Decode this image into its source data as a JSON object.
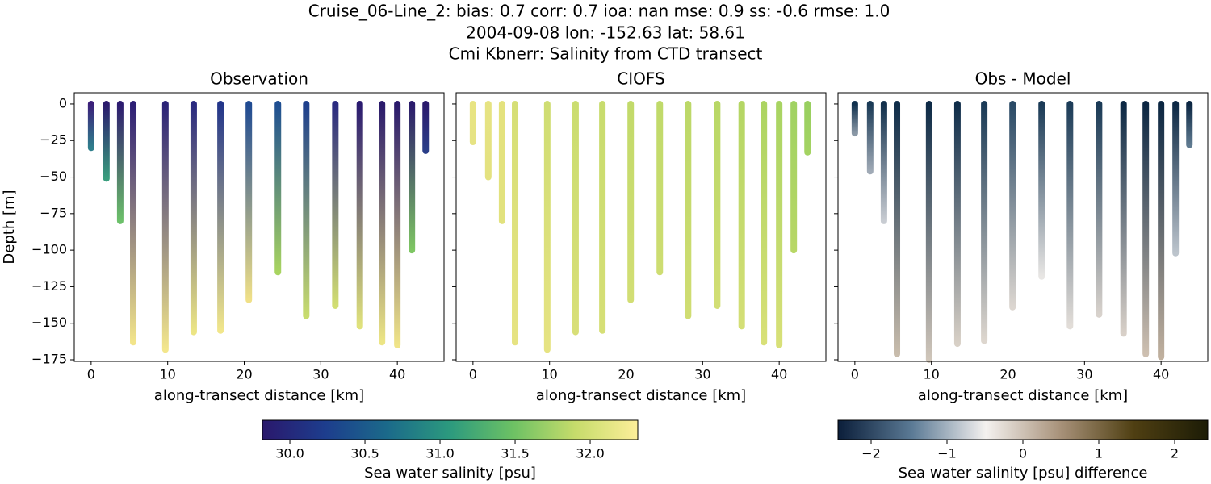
{
  "figure": {
    "title_lines": [
      "Cruise_06-Line_2: bias: 0.7  corr: 0.7  ioa: nan  mse: 0.9  ss: -0.6  rmse: 1.0",
      "2004-09-08 lon: -152.63 lat: 58.61",
      "Cmi Kbnerr: Salinity from CTD transect"
    ]
  },
  "chart_data": [
    {
      "type": "profiles",
      "title": "Observation",
      "xlabel": "along-transect distance [km]",
      "ylabel": "Depth [m]",
      "x": [
        0,
        2,
        3.8,
        5.5,
        9.7,
        13.4,
        16.9,
        20.6,
        24.4,
        28.1,
        31.9,
        35.1,
        38,
        40,
        41.9,
        43.7
      ],
      "depth": [
        -30,
        -51,
        -80,
        -163,
        -168,
        -156,
        -155,
        -134,
        -115,
        -145,
        -138,
        -152,
        -163,
        -165,
        -100,
        -32
      ],
      "colors": [
        [
          "#3b1f7a",
          "#2f7f8c"
        ],
        [
          "#2b1a6d",
          "#3a9e7e"
        ],
        [
          "#2d1b70",
          "#6cc06a"
        ],
        [
          "#2c1e75",
          "#f2e48a"
        ],
        [
          "#2b2377",
          "#f3e68c"
        ],
        [
          "#2a2a80",
          "#ece584"
        ],
        [
          "#22358a",
          "#f1e68b"
        ],
        [
          "#1f4a92",
          "#f0e088"
        ],
        [
          "#1e4e92",
          "#a8d460"
        ],
        [
          "#1e3f8c",
          "#c8dc6e"
        ],
        [
          "#2a2a80",
          "#d2de72"
        ],
        [
          "#2a1a70",
          "#e0e27c"
        ],
        [
          "#2a1a6c",
          "#ece585"
        ],
        [
          "#2a1a6c",
          "#f0e488"
        ],
        [
          "#2a1a6c",
          "#7ec663"
        ],
        [
          "#2a1a6c",
          "#2a3e88"
        ]
      ],
      "xlim": [
        -2.2,
        46.1
      ],
      "ylim": [
        -176.1,
        7.7
      ],
      "xticks": [
        0,
        10,
        20,
        30,
        40
      ],
      "yticks": [
        0,
        {
          "value": -25,
          "label": "−25"
        },
        {
          "value": -50,
          "label": "−50"
        },
        {
          "value": -75,
          "label": "−75"
        },
        {
          "value": -100,
          "label": "−100"
        },
        {
          "value": -125,
          "label": "−125"
        },
        {
          "value": -150,
          "label": "−150"
        },
        {
          "value": -175,
          "label": "−175"
        }
      ]
    },
    {
      "type": "profiles",
      "title": "CIOFS",
      "xlabel": "along-transect distance [km]",
      "x": [
        0,
        2,
        3.8,
        5.5,
        9.7,
        13.4,
        16.9,
        20.6,
        24.4,
        28.1,
        31.9,
        35.1,
        38,
        40,
        41.9,
        43.7
      ],
      "depth": [
        -26,
        -50,
        -80,
        -163,
        -168,
        -156,
        -155,
        -134,
        -115,
        -145,
        -138,
        -152,
        -163,
        -165,
        -100,
        -33
      ],
      "colors": [
        [
          "#e8e482",
          "#e6e384"
        ],
        [
          "#e6e382",
          "#e4e280"
        ],
        [
          "#e4e27e",
          "#e2e27e"
        ],
        [
          "#d6df76",
          "#e6e382"
        ],
        [
          "#cfdd72",
          "#e6e382"
        ],
        [
          "#cbdd70",
          "#d8df78"
        ],
        [
          "#c8dc6e",
          "#d6df76"
        ],
        [
          "#c2da6a",
          "#d2de74"
        ],
        [
          "#c0da6a",
          "#cedd72"
        ],
        [
          "#bcd868",
          "#d0dd72"
        ],
        [
          "#b8d766",
          "#d2de74"
        ],
        [
          "#b4d664",
          "#d4df76"
        ],
        [
          "#acd462",
          "#d8e078"
        ],
        [
          "#a8d462",
          "#d8e078"
        ],
        [
          "#a0d262",
          "#b8d766"
        ],
        [
          "#98cf60",
          "#a4d362"
        ]
      ],
      "xlim": [
        -2.2,
        46.1
      ],
      "ylim": [
        -176.1,
        7.7
      ],
      "xticks": [
        0,
        10,
        20,
        30,
        40
      ],
      "yticks": [
        0,
        -25,
        -50,
        -75,
        -100,
        -125,
        -150,
        -175
      ]
    },
    {
      "type": "profiles",
      "title": "Obs - Model",
      "xlabel": "along-transect distance [km]",
      "x": [
        0,
        2,
        3.8,
        5.5,
        9.7,
        13.4,
        16.9,
        20.6,
        24.4,
        28.1,
        31.9,
        35.1,
        38,
        40,
        41.9,
        43.7
      ],
      "depth": [
        -20,
        -46,
        -80,
        -171,
        -175,
        -164,
        -162,
        -139,
        -118,
        -152,
        -144,
        -157,
        -171,
        -173,
        -102,
        -28
      ],
      "colors": [
        [
          "#10304d",
          "#8a98a6"
        ],
        [
          "#1a3a56",
          "#a0aab6"
        ],
        [
          "#12304c",
          "#c8ccd2"
        ],
        [
          "#0f2d4a",
          "#c8bcac"
        ],
        [
          "#0d2a46",
          "#d0c6ba"
        ],
        [
          "#0f2d4a",
          "#d8d0c6"
        ],
        [
          "#1a3a56",
          "#ddd6ce"
        ],
        [
          "#2a4a66",
          "#dcd6d0"
        ],
        [
          "#1a3a56",
          "#e8e6e4"
        ],
        [
          "#1c3c58",
          "#e2ddd8"
        ],
        [
          "#1a3a56",
          "#d8d2cc"
        ],
        [
          "#0c2844",
          "#d8d0c8"
        ],
        [
          "#0b2642",
          "#cdbfb0"
        ],
        [
          "#0b2642",
          "#c0b09e"
        ],
        [
          "#0c2844",
          "#bcc4cc"
        ],
        [
          "#0b2642",
          "#5f7a90"
        ]
      ],
      "xlim": [
        -2.2,
        46.1
      ],
      "ylim": [
        -176.1,
        7.7
      ],
      "xticks": [
        0,
        10,
        20,
        30,
        40
      ],
      "yticks": [
        0,
        -25,
        -50,
        -75,
        -100,
        -125,
        -150,
        -175
      ]
    },
    {
      "type": "colorbar",
      "label": "Sea water salinity [psu]",
      "clim": [
        29.817,
        32.317
      ],
      "colors": [
        "#2a186c",
        "#1d3d8d",
        "#1b6a8a",
        "#2c9a7e",
        "#6cc164",
        "#c6dc6b",
        "#fdee99"
      ],
      "ticks": [
        {
          "value": 30,
          "label": "30.0"
        },
        {
          "value": 30.5,
          "label": "30.5"
        },
        {
          "value": 31,
          "label": "31.0"
        },
        {
          "value": 31.5,
          "label": "31.5"
        },
        {
          "value": 32,
          "label": "32.0"
        }
      ]
    },
    {
      "type": "colorbar",
      "label": "Sea water salinity [psu] difference",
      "clim": [
        -2.436,
        2.436
      ],
      "colors": [
        "#0b1e3a",
        "#5b7a95",
        "#f4f1ef",
        "#a8927a",
        "#4f3f12",
        "#1c1c06"
      ],
      "ticks": [
        {
          "value": -2,
          "label": "−2"
        },
        {
          "value": -1,
          "label": "−1"
        },
        0,
        1,
        2
      ]
    }
  ]
}
